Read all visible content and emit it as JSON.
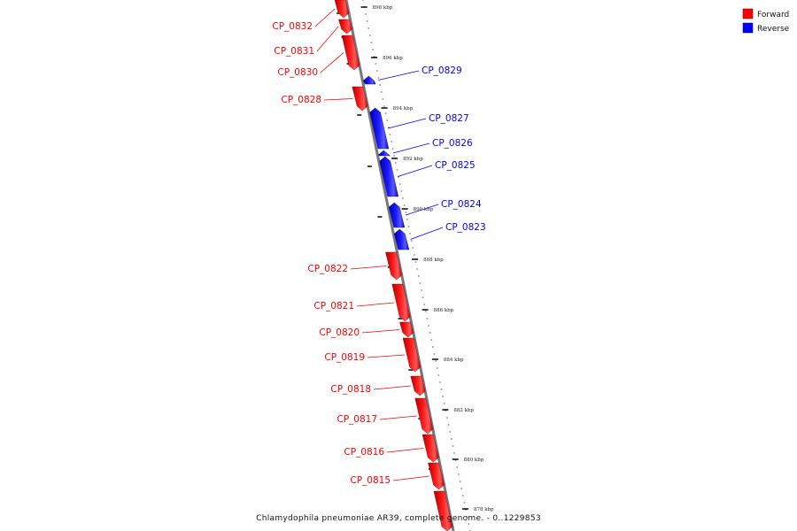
{
  "legend": {
    "forward_label": "Forward",
    "reverse_label": "Reverse",
    "forward_color": "#ff0000",
    "reverse_color": "#0000ff"
  },
  "caption": "Chlamydophila pneumoniae AR39, complete genome. - 0..1229853",
  "axis_ticks": [
    "898 kbp",
    "896 kbp",
    "894 kbp",
    "892 kbp",
    "890 kbp",
    "888 kbp",
    "886 kbp",
    "884 kbp",
    "882 kbp",
    "880 kbp",
    "878 kbp"
  ],
  "genes": [
    {
      "name": "CP_0832",
      "strand": "forward"
    },
    {
      "name": "CP_0831",
      "strand": "forward"
    },
    {
      "name": "CP_0830",
      "strand": "forward"
    },
    {
      "name": "CP_0829",
      "strand": "reverse"
    },
    {
      "name": "CP_0828",
      "strand": "forward"
    },
    {
      "name": "CP_0827",
      "strand": "reverse"
    },
    {
      "name": "CP_0826",
      "strand": "reverse"
    },
    {
      "name": "CP_0825",
      "strand": "reverse"
    },
    {
      "name": "CP_0824",
      "strand": "reverse"
    },
    {
      "name": "CP_0823",
      "strand": "reverse"
    },
    {
      "name": "CP_0822",
      "strand": "forward"
    },
    {
      "name": "CP_0821",
      "strand": "forward"
    },
    {
      "name": "CP_0820",
      "strand": "forward"
    },
    {
      "name": "CP_0819",
      "strand": "forward"
    },
    {
      "name": "CP_0818",
      "strand": "forward"
    },
    {
      "name": "CP_0817",
      "strand": "forward"
    },
    {
      "name": "CP_0816",
      "strand": "forward"
    },
    {
      "name": "CP_0815",
      "strand": "forward"
    }
  ]
}
